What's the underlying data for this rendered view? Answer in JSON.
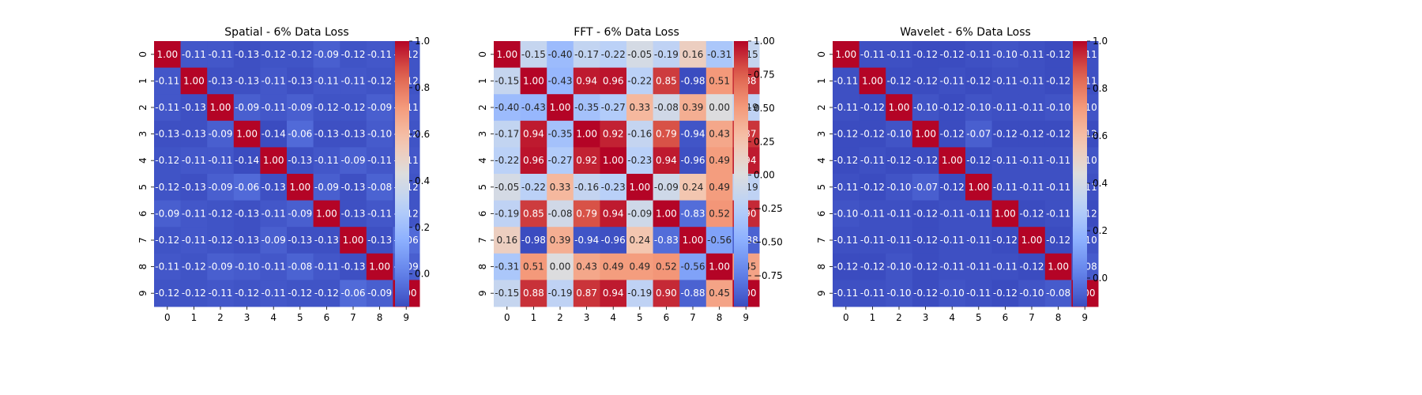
{
  "chart_data": [
    {
      "type": "heatmap",
      "title": "Spatial - 6% Data Loss",
      "x_ticks": [
        "0",
        "1",
        "2",
        "3",
        "4",
        "5",
        "6",
        "7",
        "8",
        "9"
      ],
      "y_ticks": [
        "0",
        "1",
        "2",
        "3",
        "4",
        "5",
        "6",
        "7",
        "8",
        "9"
      ],
      "colormap": "coolwarm",
      "vmin": -0.14,
      "vmax": 1.0,
      "colorbar_ticks": [
        {
          "value": 1.0,
          "label": "1.0"
        },
        {
          "value": 0.8,
          "label": "0.8"
        },
        {
          "value": 0.6,
          "label": "0.6"
        },
        {
          "value": 0.4,
          "label": "0.4"
        },
        {
          "value": 0.2,
          "label": "0.2"
        },
        {
          "value": 0.0,
          "label": "0.0"
        }
      ],
      "values": [
        [
          1.0,
          -0.11,
          -0.11,
          -0.13,
          -0.12,
          -0.12,
          -0.09,
          -0.12,
          -0.11,
          -0.12
        ],
        [
          -0.11,
          1.0,
          -0.13,
          -0.13,
          -0.11,
          -0.13,
          -0.11,
          -0.11,
          -0.12,
          -0.12
        ],
        [
          -0.11,
          -0.13,
          1.0,
          -0.09,
          -0.11,
          -0.09,
          -0.12,
          -0.12,
          -0.09,
          -0.11
        ],
        [
          -0.13,
          -0.13,
          -0.09,
          1.0,
          -0.14,
          -0.06,
          -0.13,
          -0.13,
          -0.1,
          -0.12
        ],
        [
          -0.12,
          -0.11,
          -0.11,
          -0.14,
          1.0,
          -0.13,
          -0.11,
          -0.09,
          -0.11,
          -0.11
        ],
        [
          -0.12,
          -0.13,
          -0.09,
          -0.06,
          -0.13,
          1.0,
          -0.09,
          -0.13,
          -0.08,
          -0.12
        ],
        [
          -0.09,
          -0.11,
          -0.12,
          -0.13,
          -0.11,
          -0.09,
          1.0,
          -0.13,
          -0.11,
          -0.12
        ],
        [
          -0.12,
          -0.11,
          -0.12,
          -0.13,
          -0.09,
          -0.13,
          -0.13,
          1.0,
          -0.13,
          -0.06
        ],
        [
          -0.11,
          -0.12,
          -0.09,
          -0.1,
          -0.11,
          -0.08,
          -0.11,
          -0.13,
          1.0,
          -0.09
        ],
        [
          -0.12,
          -0.12,
          -0.11,
          -0.12,
          -0.11,
          -0.12,
          -0.12,
          -0.06,
          -0.09,
          1.0
        ]
      ]
    },
    {
      "type": "heatmap",
      "title": "FFT - 6% Data Loss",
      "x_ticks": [
        "0",
        "1",
        "2",
        "3",
        "4",
        "5",
        "6",
        "7",
        "8",
        "9"
      ],
      "y_ticks": [
        "0",
        "1",
        "2",
        "3",
        "4",
        "5",
        "6",
        "7",
        "8",
        "9"
      ],
      "colormap": "coolwarm",
      "vmin": -0.98,
      "vmax": 1.0,
      "colorbar_ticks": [
        {
          "value": 1.0,
          "label": "1.00"
        },
        {
          "value": 0.75,
          "label": "0.75"
        },
        {
          "value": 0.5,
          "label": "0.50"
        },
        {
          "value": 0.25,
          "label": "0.25"
        },
        {
          "value": 0.0,
          "label": "0.00"
        },
        {
          "value": -0.25,
          "label": "−0.25"
        },
        {
          "value": -0.5,
          "label": "−0.50"
        },
        {
          "value": -0.75,
          "label": "−0.75"
        }
      ],
      "values": [
        [
          1.0,
          -0.15,
          -0.4,
          -0.17,
          -0.22,
          -0.05,
          -0.19,
          0.16,
          -0.31,
          -0.15
        ],
        [
          -0.15,
          1.0,
          -0.43,
          0.94,
          0.96,
          -0.22,
          0.85,
          -0.98,
          0.51,
          0.88
        ],
        [
          -0.4,
          -0.43,
          1.0,
          -0.35,
          -0.27,
          0.33,
          -0.08,
          0.39,
          -0.0,
          -0.19
        ],
        [
          -0.17,
          0.94,
          -0.35,
          1.0,
          0.92,
          -0.16,
          0.79,
          -0.94,
          0.43,
          0.87
        ],
        [
          -0.22,
          0.96,
          -0.27,
          0.92,
          1.0,
          -0.23,
          0.94,
          -0.96,
          0.49,
          0.94
        ],
        [
          -0.05,
          -0.22,
          0.33,
          -0.16,
          -0.23,
          1.0,
          -0.09,
          0.24,
          0.49,
          -0.19
        ],
        [
          -0.19,
          0.85,
          -0.08,
          0.79,
          0.94,
          -0.09,
          1.0,
          -0.83,
          0.52,
          0.9
        ],
        [
          0.16,
          -0.98,
          0.39,
          -0.94,
          -0.96,
          0.24,
          -0.83,
          1.0,
          -0.56,
          -0.88
        ],
        [
          -0.31,
          0.51,
          -0.0,
          0.43,
          0.49,
          0.49,
          0.52,
          -0.56,
          1.0,
          0.45
        ],
        [
          -0.15,
          0.88,
          -0.19,
          0.87,
          0.94,
          -0.19,
          0.9,
          -0.88,
          0.45,
          1.0
        ]
      ]
    },
    {
      "type": "heatmap",
      "title": "Wavelet - 6% Data Loss",
      "x_ticks": [
        "0",
        "1",
        "2",
        "3",
        "4",
        "5",
        "6",
        "7",
        "8",
        "9"
      ],
      "y_ticks": [
        "0",
        "1",
        "2",
        "3",
        "4",
        "5",
        "6",
        "7",
        "8",
        "9"
      ],
      "colormap": "coolwarm",
      "vmin": -0.12,
      "vmax": 1.0,
      "colorbar_ticks": [
        {
          "value": 1.0,
          "label": "1.0"
        },
        {
          "value": 0.8,
          "label": "0.8"
        },
        {
          "value": 0.6,
          "label": "0.6"
        },
        {
          "value": 0.4,
          "label": "0.4"
        },
        {
          "value": 0.2,
          "label": "0.2"
        },
        {
          "value": 0.0,
          "label": "0.0"
        }
      ],
      "values": [
        [
          1.0,
          -0.11,
          -0.11,
          -0.12,
          -0.12,
          -0.11,
          -0.1,
          -0.11,
          -0.12,
          -0.11
        ],
        [
          -0.11,
          1.0,
          -0.12,
          -0.12,
          -0.11,
          -0.12,
          -0.11,
          -0.11,
          -0.12,
          -0.11
        ],
        [
          -0.11,
          -0.12,
          1.0,
          -0.1,
          -0.12,
          -0.1,
          -0.11,
          -0.11,
          -0.1,
          -0.1
        ],
        [
          -0.12,
          -0.12,
          -0.1,
          1.0,
          -0.12,
          -0.07,
          -0.12,
          -0.12,
          -0.12,
          -0.12
        ],
        [
          -0.12,
          -0.11,
          -0.12,
          -0.12,
          1.0,
          -0.12,
          -0.11,
          -0.11,
          -0.11,
          -0.1
        ],
        [
          -0.11,
          -0.12,
          -0.1,
          -0.07,
          -0.12,
          1.0,
          -0.11,
          -0.11,
          -0.11,
          -0.11
        ],
        [
          -0.1,
          -0.11,
          -0.11,
          -0.12,
          -0.11,
          -0.11,
          1.0,
          -0.12,
          -0.11,
          -0.12
        ],
        [
          -0.11,
          -0.11,
          -0.11,
          -0.12,
          -0.11,
          -0.11,
          -0.12,
          1.0,
          -0.12,
          -0.1
        ],
        [
          -0.12,
          -0.12,
          -0.1,
          -0.12,
          -0.11,
          -0.11,
          -0.11,
          -0.12,
          1.0,
          -0.08
        ],
        [
          -0.11,
          -0.11,
          -0.1,
          -0.12,
          -0.1,
          -0.11,
          -0.12,
          -0.1,
          -0.08,
          1.0
        ]
      ]
    }
  ]
}
